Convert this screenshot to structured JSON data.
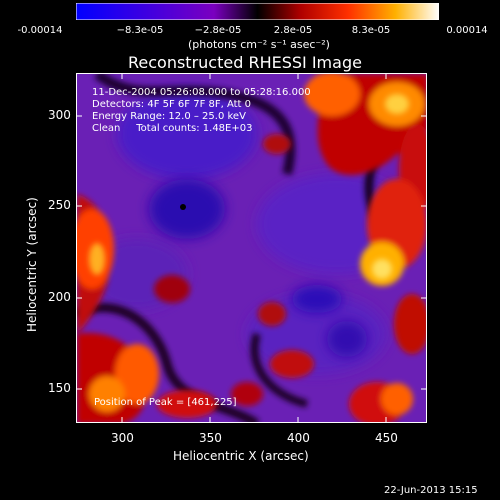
{
  "colorbar": {
    "ticks": [
      "-0.00014",
      "−8.3e-05",
      "−2.8e-05",
      "2.8e-05",
      "8.3e-05",
      "0.00014"
    ],
    "units": "(photons cm⁻² s⁻¹ asec⁻²)"
  },
  "title": "Reconstructed RHESSI Image",
  "info": {
    "time": "11-Dec-2004 05:26:08.000 to 05:28:16.000",
    "detectors": "Detectors: 4F 5F 6F 7F 8F, Att 0",
    "energy": "Energy Range: 12.0 – 25.0 keV",
    "clean": "Clean     Total counts: 1.48E+03",
    "peak": "Position of Peak = [461,225]"
  },
  "axes": {
    "xlabel": "Heliocentric X (arcsec)",
    "ylabel": "Heliocentric Y (arcsec)",
    "xticks": [
      "300",
      "350",
      "400",
      "450"
    ],
    "yticks": [
      "300",
      "250",
      "200",
      "150"
    ]
  },
  "footer": "22-Jun-2013 15:15"
}
